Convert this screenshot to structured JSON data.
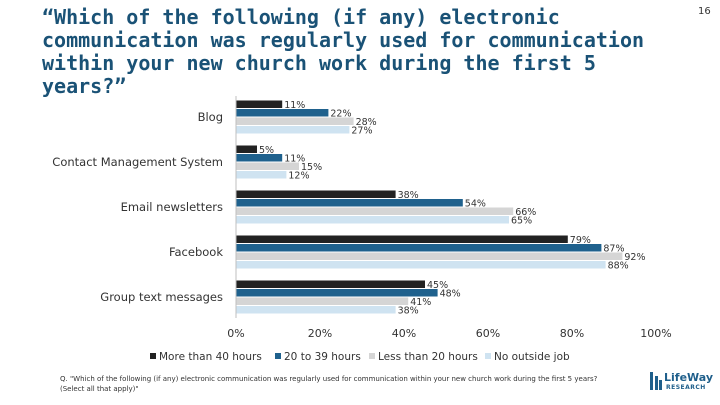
{
  "slide": {
    "title": "“Which of the following (if any) electronic communication was regularly used for communication within your new church work during the first 5 years?”",
    "page_number": "16",
    "footnote": "Q. \"Which of the following (if any) electronic communication was regularly used for communication within your new church work during the first 5 years? (Select all that apply)\"",
    "logo_line1": "LifeWay",
    "logo_line2": "RESEARCH"
  },
  "chart_data": {
    "type": "bar",
    "orientation": "horizontal",
    "categories": [
      "Blog",
      "Contact Management System",
      "Email newsletters",
      "Facebook",
      "Group text messages"
    ],
    "series": [
      {
        "name": "More than 40 hours",
        "color": "#222222",
        "values": [
          11,
          5,
          38,
          79,
          45
        ],
        "labels": [
          "11%",
          "5%",
          "38%",
          "79%",
          "45%"
        ]
      },
      {
        "name": "20 to 39 hours",
        "color": "#1f618d",
        "values": [
          22,
          11,
          54,
          87,
          48
        ],
        "labels": [
          "22%",
          "11%",
          "54%",
          "87%",
          "48%"
        ]
      },
      {
        "name": "Less than 20 hours",
        "color": "#d5d5d5",
        "values": [
          28,
          15,
          66,
          92,
          41
        ],
        "labels": [
          "28%",
          "15%",
          "66%",
          "92%",
          "41%"
        ]
      },
      {
        "name": "No outside job",
        "color": "#cfe3f1",
        "values": [
          27,
          12,
          65,
          88,
          38
        ],
        "labels": [
          "27%",
          "12%",
          "65%",
          "88%",
          "38%"
        ]
      }
    ],
    "xlim": [
      0,
      100
    ],
    "xticks": [
      "0%",
      "20%",
      "40%",
      "60%",
      "80%",
      "100%"
    ],
    "grid": false,
    "legend_position": "bottom"
  }
}
